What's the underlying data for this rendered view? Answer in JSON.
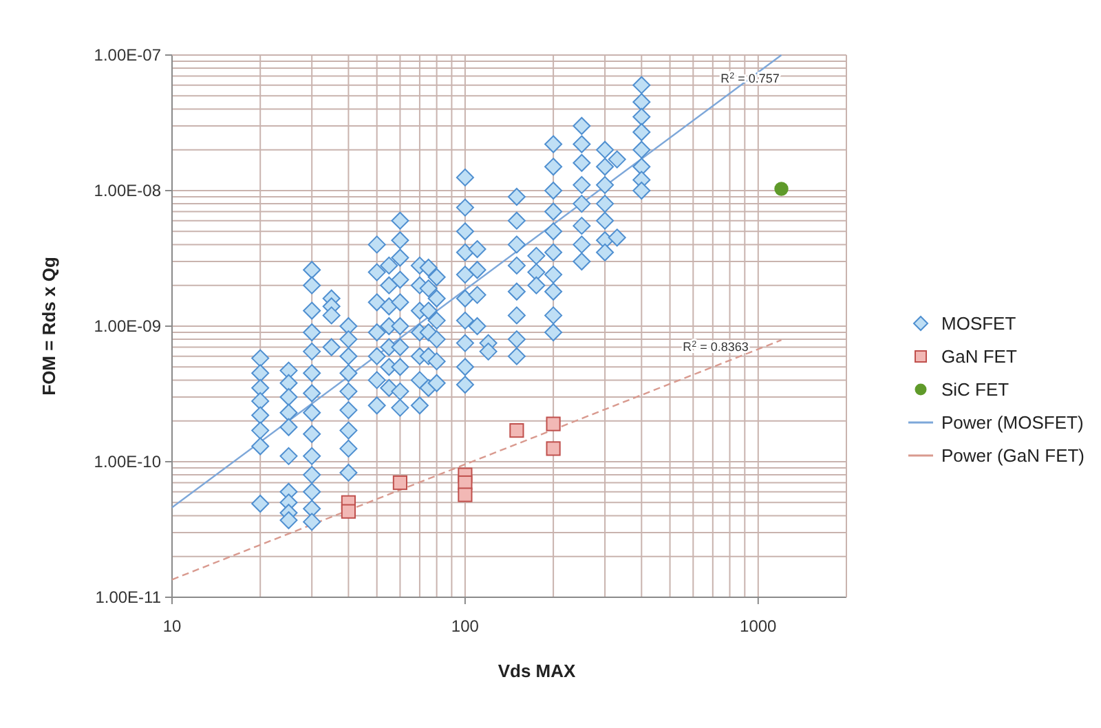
{
  "chart_data": {
    "type": "scatter",
    "xlabel": "Vds MAX",
    "ylabel": "FOM = Rds x Qg",
    "log": "xy",
    "grid": true,
    "legend": "right",
    "xlim": [
      10,
      2000
    ],
    "ylim": [
      1e-11,
      1e-07
    ],
    "xticks": [
      10,
      {
        "value": 20,
        "label": null
      },
      {
        "value": 30,
        "label": null
      },
      {
        "value": 40,
        "label": null
      },
      {
        "value": 50,
        "label": null
      },
      {
        "value": 60,
        "label": null
      },
      {
        "value": 70,
        "label": null
      },
      {
        "value": 80,
        "label": null
      },
      {
        "value": 90,
        "label": null
      },
      100,
      {
        "value": 200,
        "label": null
      },
      {
        "value": 300,
        "label": null
      },
      {
        "value": 400,
        "label": null
      },
      {
        "value": 500,
        "label": null
      },
      {
        "value": 600,
        "label": null
      },
      {
        "value": 700,
        "label": null
      },
      {
        "value": 800,
        "label": null
      },
      {
        "value": 900,
        "label": null
      },
      1000
    ],
    "yticks": [
      {
        "value": 1e-11,
        "label": "1.00E-11"
      },
      {
        "value": 2e-11,
        "label": null
      },
      {
        "value": 3e-11,
        "label": null
      },
      {
        "value": 4e-11,
        "label": null
      },
      {
        "value": 5e-11,
        "label": null
      },
      {
        "value": 6e-11,
        "label": null
      },
      {
        "value": 7e-11,
        "label": null
      },
      {
        "value": 8e-11,
        "label": null
      },
      {
        "value": 9e-11,
        "label": null
      },
      {
        "value": 1e-10,
        "label": "1.00E-10"
      },
      {
        "value": 2e-10,
        "label": null
      },
      {
        "value": 3e-10,
        "label": null
      },
      {
        "value": 4e-10,
        "label": null
      },
      {
        "value": 5e-10,
        "label": null
      },
      {
        "value": 6e-10,
        "label": null
      },
      {
        "value": 7e-10,
        "label": null
      },
      {
        "value": 8e-10,
        "label": null
      },
      {
        "value": 9e-10,
        "label": null
      },
      {
        "value": 1e-09,
        "label": "1.00E-09"
      },
      {
        "value": 2e-09,
        "label": null
      },
      {
        "value": 3e-09,
        "label": null
      },
      {
        "value": 4e-09,
        "label": null
      },
      {
        "value": 5e-09,
        "label": null
      },
      {
        "value": 6e-09,
        "label": null
      },
      {
        "value": 7e-09,
        "label": null
      },
      {
        "value": 8e-09,
        "label": null
      },
      {
        "value": 9e-09,
        "label": null
      },
      {
        "value": 1e-08,
        "label": "1.00E-08"
      },
      {
        "value": 2e-08,
        "label": null
      },
      {
        "value": 3e-08,
        "label": null
      },
      {
        "value": 4e-08,
        "label": null
      },
      {
        "value": 5e-08,
        "label": null
      },
      {
        "value": 6e-08,
        "label": null
      },
      {
        "value": 7e-08,
        "label": null
      },
      {
        "value": 8e-08,
        "label": null
      },
      {
        "value": 9e-08,
        "label": null
      },
      {
        "value": 1e-07,
        "label": "1.00E-07"
      }
    ],
    "annotations": [
      "R$^{2}$ = 0.757",
      "R$^{2}$ = 0.8363"
    ],
    "series": [
      {
        "name": "MOSFET",
        "marker": "diamond",
        "color": "#4f8fd0",
        "x": [
          20,
          20,
          20,
          20,
          20,
          20,
          20,
          20,
          25,
          25,
          25,
          25,
          25,
          25,
          25,
          25,
          25,
          25,
          30,
          30,
          30,
          30,
          30,
          30,
          30,
          30,
          30,
          30,
          30,
          30,
          30,
          30,
          35,
          35,
          35,
          35,
          40,
          40,
          40,
          40,
          40,
          40,
          40,
          40,
          40,
          50,
          50,
          50,
          50,
          50,
          50,
          50,
          55,
          55,
          55,
          55,
          55,
          55,
          55,
          60,
          60,
          60,
          60,
          60,
          60,
          60,
          60,
          60,
          60,
          70,
          70,
          70,
          70,
          70,
          70,
          70,
          75,
          75,
          75,
          75,
          75,
          75,
          80,
          80,
          80,
          80,
          80,
          80,
          100,
          100,
          100,
          100,
          100,
          100,
          100,
          100,
          100,
          100,
          110,
          110,
          110,
          110,
          120,
          120,
          150,
          150,
          150,
          150,
          150,
          150,
          150,
          150,
          175,
          175,
          175,
          200,
          200,
          200,
          200,
          200,
          200,
          200,
          200,
          200,
          200,
          250,
          250,
          250,
          250,
          250,
          250,
          250,
          250,
          300,
          300,
          300,
          300,
          300,
          300,
          300,
          330,
          330,
          400,
          400,
          400,
          400,
          400,
          400,
          400,
          400
        ],
        "values": [
          5.8e-10,
          4.5e-10,
          3.5e-10,
          2.8e-10,
          2.2e-10,
          1.7e-10,
          1.3e-10,
          4.9e-11,
          4.7e-10,
          3.8e-10,
          3e-10,
          2.3e-10,
          1.8e-10,
          1.1e-10,
          6e-11,
          5e-11,
          4.2e-11,
          3.7e-11,
          2.6e-09,
          2e-09,
          1.3e-09,
          9e-10,
          6.5e-10,
          4.5e-10,
          3.2e-10,
          2.3e-10,
          1.6e-10,
          1.1e-10,
          8e-11,
          6e-11,
          4.5e-11,
          3.6e-11,
          1.6e-09,
          1.4e-09,
          1.2e-09,
          7e-10,
          1e-09,
          8e-10,
          6e-10,
          4.5e-10,
          3.3e-10,
          2.4e-10,
          1.7e-10,
          1.25e-10,
          8.3e-11,
          4e-09,
          2.5e-09,
          1.5e-09,
          9e-10,
          6e-10,
          4e-10,
          2.6e-10,
          2.8e-09,
          2e-09,
          1.4e-09,
          1e-09,
          7e-10,
          5e-10,
          3.5e-10,
          6e-09,
          4.3e-09,
          3.2e-09,
          2.2e-09,
          1.5e-09,
          1e-09,
          7e-10,
          5e-10,
          3.3e-10,
          2.5e-10,
          2.8e-09,
          2e-09,
          1.3e-09,
          9e-10,
          6e-10,
          4e-10,
          2.6e-10,
          2.7e-09,
          1.9e-09,
          1.3e-09,
          9e-10,
          6e-10,
          3.5e-10,
          2.3e-09,
          1.6e-09,
          1.1e-09,
          8e-10,
          5.5e-10,
          3.8e-10,
          1.25e-08,
          7.5e-09,
          5e-09,
          3.5e-09,
          2.4e-09,
          1.6e-09,
          1.1e-09,
          7.5e-10,
          5e-10,
          3.7e-10,
          3.7e-09,
          2.6e-09,
          1.7e-09,
          1e-09,
          7.5e-10,
          6.5e-10,
          9e-09,
          6e-09,
          4e-09,
          2.8e-09,
          1.8e-09,
          1.2e-09,
          8e-10,
          6e-10,
          3.3e-09,
          2.5e-09,
          2e-09,
          2.2e-08,
          1.5e-08,
          1e-08,
          7e-09,
          5e-09,
          3.5e-09,
          2.4e-09,
          1.8e-09,
          1.2e-09,
          9e-10,
          3e-08,
          2.2e-08,
          1.6e-08,
          1.1e-08,
          8e-09,
          5.5e-09,
          4e-09,
          3e-09,
          2e-08,
          1.5e-08,
          1.1e-08,
          8e-09,
          6e-09,
          4.3e-09,
          3.5e-09,
          1.7e-08,
          4.5e-09,
          6e-08,
          4.5e-08,
          3.5e-08,
          2.7e-08,
          2e-08,
          1.5e-08,
          1.2e-08,
          1e-08
        ]
      },
      {
        "name": "GaN FET",
        "marker": "square",
        "color": "#c0504d",
        "x": [
          40,
          40,
          60,
          100,
          100,
          100,
          150,
          200,
          200
        ],
        "values": [
          5e-11,
          4.3e-11,
          7e-11,
          8e-11,
          7e-11,
          5.7e-11,
          1.7e-10,
          1.9e-10,
          1.25e-10
        ]
      },
      {
        "name": "SiC FET",
        "marker": "circle",
        "color": "#5f9a2a",
        "x": [
          1200
        ],
        "values": [
          1.03e-08
        ]
      },
      {
        "name": "Power (MOSFET)",
        "type": "line",
        "line_style": "solid",
        "color": "#7da7d9",
        "x": [
          10,
          1200
        ],
        "values": [
          4.6e-11,
          1e-07
        ]
      },
      {
        "name": "Power (GaN FET)",
        "type": "line",
        "line_style": "dashed",
        "color": "#d99a8f",
        "x": [
          10,
          1200
        ],
        "values": [
          1.35e-11,
          7.9e-10
        ]
      }
    ]
  }
}
